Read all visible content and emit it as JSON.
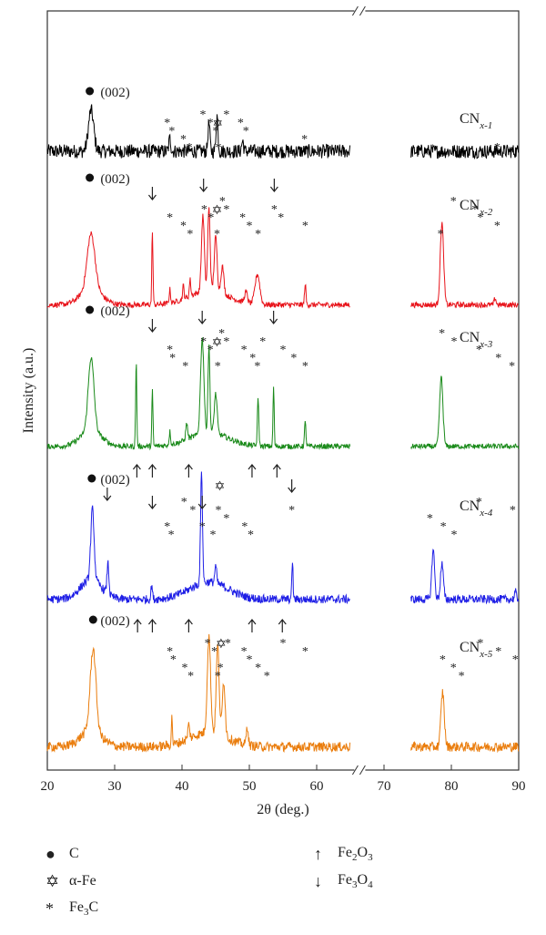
{
  "chart_data": {
    "type": "line",
    "xlabel": "2θ (deg.)",
    "ylabel": "Intensity (a.u.)",
    "xlim": [
      20,
      90
    ],
    "axis_break": [
      65,
      74
    ],
    "xticks": [
      20,
      30,
      40,
      50,
      60,
      70,
      80,
      90
    ],
    "grid": false,
    "legend_position": "bottom-left",
    "colors": {
      "CNx-1": "#000000",
      "CNx-2": "#e8141b",
      "CNx-3": "#1a8a1a",
      "CNx-4": "#1f1fe6",
      "CNx-5": "#ea7d0d"
    },
    "series": [
      {
        "name": "CNx-1",
        "label_main": "CN",
        "label_sub": "x-1",
        "baseline": 0.1,
        "hump": 0.0,
        "noise": 0.055,
        "peaks": [
          [
            26.5,
            0.32,
            0.55
          ],
          [
            38.2,
            0.1,
            0.2
          ],
          [
            44.0,
            0.22,
            0.2
          ],
          [
            45.2,
            0.28,
            0.2
          ],
          [
            49.0,
            0.08,
            0.2
          ]
        ]
      },
      {
        "name": "CNx-2",
        "label_main": "CN",
        "label_sub": "x-2",
        "baseline": 0.07,
        "hump": 0.3,
        "noise": 0.02,
        "peaks": [
          [
            26.5,
            0.4,
            0.8
          ],
          [
            35.6,
            0.55,
            0.12
          ],
          [
            38.2,
            0.1,
            0.15
          ],
          [
            40.2,
            0.1,
            0.15
          ],
          [
            41.2,
            0.12,
            0.15
          ],
          [
            43.1,
            0.55,
            0.3
          ],
          [
            44.0,
            0.6,
            0.25
          ],
          [
            45.0,
            0.4,
            0.3
          ],
          [
            46.0,
            0.2,
            0.3
          ],
          [
            49.5,
            0.08,
            0.3
          ],
          [
            51.2,
            0.22,
            0.5
          ],
          [
            58.3,
            0.15,
            0.15
          ],
          [
            78.6,
            0.6,
            0.35
          ],
          [
            86.5,
            0.05,
            0.2
          ]
        ]
      },
      {
        "name": "CNx-3",
        "label_main": "CN",
        "label_sub": "x-3",
        "baseline": 0.07,
        "hump": 0.3,
        "noise": 0.02,
        "peaks": [
          [
            26.5,
            0.55,
            0.6
          ],
          [
            33.2,
            0.65,
            0.12
          ],
          [
            35.6,
            0.42,
            0.12
          ],
          [
            38.2,
            0.1,
            0.15
          ],
          [
            40.7,
            0.12,
            0.2
          ],
          [
            43.0,
            0.72,
            0.35
          ],
          [
            44.0,
            0.65,
            0.2
          ],
          [
            45.0,
            0.3,
            0.3
          ],
          [
            51.3,
            0.35,
            0.15
          ],
          [
            53.6,
            0.45,
            0.12
          ],
          [
            58.3,
            0.18,
            0.15
          ],
          [
            78.5,
            0.52,
            0.35
          ]
        ]
      },
      {
        "name": "CNx-4",
        "label_main": "CN",
        "label_sub": "x-4",
        "baseline": 0.08,
        "hump": 0.35,
        "noise": 0.03,
        "peaks": [
          [
            26.7,
            0.5,
            0.35
          ],
          [
            29.0,
            0.22,
            0.2
          ],
          [
            35.5,
            0.1,
            0.15
          ],
          [
            42.9,
            0.8,
            0.2
          ],
          [
            45.0,
            0.12,
            0.2
          ],
          [
            56.4,
            0.28,
            0.12
          ],
          [
            77.3,
            0.35,
            0.3
          ],
          [
            78.6,
            0.25,
            0.3
          ],
          [
            89.5,
            0.05,
            0.2
          ]
        ]
      },
      {
        "name": "CNx-5",
        "label_main": "CN",
        "label_sub": "x-5",
        "baseline": 0.07,
        "hump": 0.3,
        "noise": 0.035,
        "peaks": [
          [
            26.8,
            0.6,
            0.6
          ],
          [
            38.5,
            0.2,
            0.12
          ],
          [
            41.0,
            0.1,
            0.2
          ],
          [
            44.0,
            0.7,
            0.35
          ],
          [
            45.3,
            0.65,
            0.3
          ],
          [
            46.2,
            0.4,
            0.3
          ],
          [
            49.7,
            0.14,
            0.2
          ],
          [
            78.7,
            0.4,
            0.35
          ]
        ]
      }
    ],
    "peak_label": "(002)",
    "annotations": [
      {
        "series": "CNx-1",
        "marks": [
          [
            "dot",
            26.3
          ],
          [
            "star",
            37.8
          ],
          [
            "star",
            38.5
          ],
          [
            "star",
            40.2
          ],
          [
            "star",
            41.1
          ],
          [
            "star",
            43.1
          ],
          [
            "star",
            44.2
          ],
          [
            "star",
            45.0
          ],
          [
            "hexstar",
            45.3
          ],
          [
            "star",
            45.4
          ],
          [
            "star",
            46.6
          ],
          [
            "star",
            48.7
          ],
          [
            "star",
            49.5
          ],
          [
            "star",
            58.2
          ],
          [
            "star",
            86.8
          ]
        ]
      },
      {
        "series": "CNx-2",
        "marks": [
          [
            "dot",
            26.3
          ],
          [
            "down",
            35.6
          ],
          [
            "star",
            38.2
          ],
          [
            "star",
            40.2
          ],
          [
            "star",
            41.2
          ],
          [
            "down",
            43.2
          ],
          [
            "star",
            43.3
          ],
          [
            "star",
            44.3
          ],
          [
            "hexstar",
            45.2
          ],
          [
            "star",
            45.2
          ],
          [
            "star",
            46.0
          ],
          [
            "star",
            46.6
          ],
          [
            "star",
            49.0
          ],
          [
            "star",
            50.0
          ],
          [
            "star",
            51.3
          ],
          [
            "down",
            53.7
          ],
          [
            "star",
            53.7
          ],
          [
            "star",
            54.7
          ],
          [
            "star",
            58.3
          ],
          [
            "star",
            78.4
          ],
          [
            "star",
            80.3
          ],
          [
            "star",
            83.5
          ],
          [
            "star",
            84.3
          ],
          [
            "star",
            86.8
          ]
        ]
      },
      {
        "series": "CNx-3",
        "marks": [
          [
            "dot",
            26.3
          ],
          [
            "down",
            35.6
          ],
          [
            "star",
            38.2
          ],
          [
            "star",
            38.6
          ],
          [
            "star",
            40.5
          ],
          [
            "down",
            43.0
          ],
          [
            "star",
            43.2
          ],
          [
            "star",
            44.2
          ],
          [
            "hexstar",
            45.2
          ],
          [
            "star",
            45.3
          ],
          [
            "star",
            45.9
          ],
          [
            "star",
            46.6
          ],
          [
            "star",
            49.2
          ],
          [
            "star",
            50.5
          ],
          [
            "star",
            51.2
          ],
          [
            "down",
            53.6
          ],
          [
            "star",
            52.0
          ],
          [
            "star",
            55.0
          ],
          [
            "star",
            56.6
          ],
          [
            "star",
            58.3
          ],
          [
            "star",
            78.6
          ],
          [
            "star",
            80.4
          ],
          [
            "star",
            84.1
          ],
          [
            "star",
            87.0
          ],
          [
            "star",
            89.0
          ],
          [
            "up",
            33.3
          ],
          [
            "up",
            35.6
          ],
          [
            "up",
            41.0
          ],
          [
            "up",
            50.4
          ],
          [
            "up",
            54.1
          ]
        ]
      },
      {
        "series": "CNx-4",
        "marks": [
          [
            "dot",
            26.6
          ],
          [
            "down",
            28.9
          ],
          [
            "down",
            35.6
          ],
          [
            "star",
            37.8
          ],
          [
            "star",
            38.4
          ],
          [
            "star",
            40.3
          ],
          [
            "star",
            41.6
          ],
          [
            "down",
            43.0
          ],
          [
            "star",
            43.0
          ],
          [
            "star",
            44.6
          ],
          [
            "hexstar",
            45.6
          ],
          [
            "star",
            45.4
          ],
          [
            "star",
            46.6
          ],
          [
            "star",
            49.3
          ],
          [
            "star",
            50.2
          ],
          [
            "down",
            56.3
          ],
          [
            "star",
            56.3
          ],
          [
            "star",
            76.8
          ],
          [
            "star",
            78.8
          ],
          [
            "star",
            80.4
          ],
          [
            "star",
            84.1
          ],
          [
            "star",
            89.1
          ],
          [
            "up",
            33.4
          ],
          [
            "up",
            35.6
          ],
          [
            "up",
            41.0
          ],
          [
            "up",
            50.4
          ],
          [
            "up",
            54.9
          ]
        ]
      },
      {
        "series": "CNx-5",
        "marks": [
          [
            "dot",
            26.8
          ],
          [
            "star",
            38.2
          ],
          [
            "star",
            38.7
          ],
          [
            "star",
            40.4
          ],
          [
            "star",
            41.3
          ],
          [
            "star",
            43.8
          ],
          [
            "star",
            44.8
          ],
          [
            "hexstar",
            45.8
          ],
          [
            "star",
            45.7
          ],
          [
            "star",
            45.3
          ],
          [
            "star",
            46.8
          ],
          [
            "star",
            49.2
          ],
          [
            "star",
            50.0
          ],
          [
            "star",
            51.3
          ],
          [
            "star",
            52.6
          ],
          [
            "star",
            55.0
          ],
          [
            "star",
            58.3
          ],
          [
            "star",
            78.7
          ],
          [
            "star",
            80.3
          ],
          [
            "star",
            81.5
          ],
          [
            "star",
            84.3
          ],
          [
            "star",
            87.0
          ],
          [
            "star",
            89.5
          ]
        ]
      }
    ],
    "legend": [
      {
        "symbol": "dot",
        "main": "C",
        "sub": ""
      },
      {
        "symbol": "hexstar",
        "main": "α-Fe",
        "sub": ""
      },
      {
        "symbol": "star",
        "main": "Fe",
        "sub": "3",
        "main2": "C"
      },
      {
        "symbol": "up",
        "main": "Fe",
        "sub": "2",
        "main2": "O",
        "sub2": "3"
      },
      {
        "symbol": "down",
        "main": "Fe",
        "sub": "3",
        "main2": "O",
        "sub2": "4"
      }
    ]
  }
}
